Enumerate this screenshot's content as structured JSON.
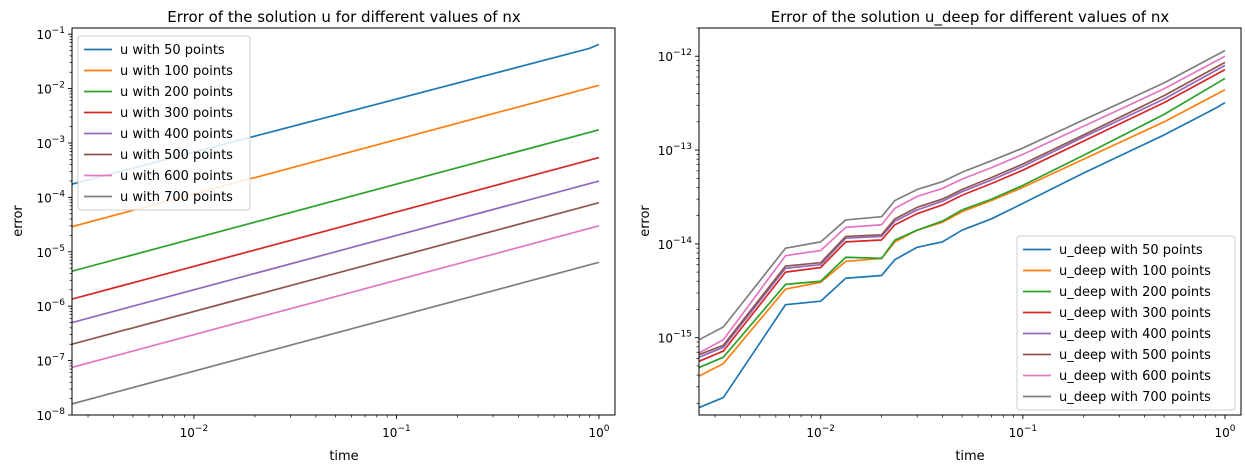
{
  "chart_data": [
    {
      "type": "line",
      "title": "Error of the solution u for different values of nx",
      "xlabel": "time",
      "ylabel": "error",
      "xscale": "log",
      "yscale": "log",
      "xlim": [
        0.0025,
        1.2
      ],
      "ylim": [
        1e-08,
        0.13
      ],
      "x_ticks": [
        {
          "value": 0.01,
          "base": "10",
          "exp": "−2"
        },
        {
          "value": 0.1,
          "base": "10",
          "exp": "−1"
        },
        {
          "value": 1,
          "base": "10",
          "exp": "0"
        }
      ],
      "y_ticks": [
        {
          "value": 1e-08,
          "base": "10",
          "exp": "−8"
        },
        {
          "value": 1e-07,
          "base": "10",
          "exp": "−7"
        },
        {
          "value": 1e-06,
          "base": "10",
          "exp": "−6"
        },
        {
          "value": 1e-05,
          "base": "10",
          "exp": "−5"
        },
        {
          "value": 0.0001,
          "base": "10",
          "exp": "−4"
        },
        {
          "value": 0.001,
          "base": "10",
          "exp": "−3"
        },
        {
          "value": 0.01,
          "base": "10",
          "exp": "−2"
        },
        {
          "value": 0.1,
          "base": "10",
          "exp": "−1"
        }
      ],
      "legend_position": "top-left",
      "series": [
        {
          "name": "u with 50 points",
          "color": "#1f77b4",
          "points": [
            [
              0.0025,
              0.000175
            ],
            [
              0.9,
              0.055
            ],
            [
              1.0,
              0.065
            ]
          ]
        },
        {
          "name": "u with 100 points",
          "color": "#ff7f0e",
          "points": [
            [
              0.0025,
              2.9e-05
            ],
            [
              1.0,
              0.0115
            ]
          ]
        },
        {
          "name": "u with 200 points",
          "color": "#2ca02c",
          "points": [
            [
              0.0025,
              4.4e-06
            ],
            [
              1.0,
              0.00175
            ]
          ]
        },
        {
          "name": "u with 300 points",
          "color": "#d62728",
          "points": [
            [
              0.0025,
              1.35e-06
            ],
            [
              1.0,
              0.00054
            ]
          ]
        },
        {
          "name": "u with 400 points",
          "color": "#9467bd",
          "points": [
            [
              0.0025,
              5e-07
            ],
            [
              1.0,
              0.0002
            ]
          ]
        },
        {
          "name": "u with 500 points",
          "color": "#8c564b",
          "points": [
            [
              0.0025,
              2e-07
            ],
            [
              1.0,
              8e-05
            ]
          ]
        },
        {
          "name": "u with 600 points",
          "color": "#e377c2",
          "points": [
            [
              0.0025,
              7.5e-08
            ],
            [
              1.0,
              3e-05
            ]
          ]
        },
        {
          "name": "u with 700 points",
          "color": "#7f7f7f",
          "points": [
            [
              0.0025,
              1.6e-08
            ],
            [
              1.0,
              6.4e-06
            ]
          ]
        }
      ]
    },
    {
      "type": "line",
      "title": "Error of the solution u_deep for different values of nx",
      "xlabel": "time",
      "ylabel": "error",
      "xscale": "log",
      "yscale": "log",
      "xlim": [
        0.0025,
        1.2
      ],
      "ylim": [
        1.5e-16,
        2e-12
      ],
      "x_ticks": [
        {
          "value": 0.01,
          "base": "10",
          "exp": "−2"
        },
        {
          "value": 0.1,
          "base": "10",
          "exp": "−1"
        },
        {
          "value": 1,
          "base": "10",
          "exp": "0"
        }
      ],
      "y_ticks": [
        {
          "value": 1e-15,
          "base": "10",
          "exp": "−15"
        },
        {
          "value": 1e-14,
          "base": "10",
          "exp": "−14"
        },
        {
          "value": 1e-13,
          "base": "10",
          "exp": "−13"
        },
        {
          "value": 1e-12,
          "base": "10",
          "exp": "−12"
        }
      ],
      "legend_position": "lower-right",
      "series": [
        {
          "name": "u_deep with 50 points",
          "color": "#1f77b4",
          "points": [
            [
              0.0025,
              1.8e-16
            ],
            [
              0.0033,
              2.3e-16
            ],
            [
              0.0067,
              2.25e-15
            ],
            [
              0.01,
              2.45e-15
            ],
            [
              0.0133,
              4.3e-15
            ],
            [
              0.02,
              4.6e-15
            ],
            [
              0.0233,
              6.8e-15
            ],
            [
              0.03,
              9.2e-15
            ],
            [
              0.04,
              1.05e-14
            ],
            [
              0.05,
              1.4e-14
            ],
            [
              0.07,
              1.85e-14
            ],
            [
              0.1,
              2.7e-14
            ],
            [
              0.2,
              5.7e-14
            ],
            [
              0.5,
              1.45e-13
            ],
            [
              0.9,
              2.8e-13
            ],
            [
              1.0,
              3.2e-13
            ]
          ]
        },
        {
          "name": "u_deep with 100 points",
          "color": "#ff7f0e",
          "points": [
            [
              0.0025,
              3.9e-16
            ],
            [
              0.0033,
              5.3e-16
            ],
            [
              0.0067,
              3.3e-15
            ],
            [
              0.01,
              3.9e-15
            ],
            [
              0.0133,
              6.5e-15
            ],
            [
              0.02,
              7e-15
            ],
            [
              0.0233,
              1.05e-14
            ],
            [
              0.03,
              1.4e-14
            ],
            [
              0.04,
              1.7e-14
            ],
            [
              0.05,
              2.2e-14
            ],
            [
              0.07,
              2.9e-14
            ],
            [
              0.1,
              4e-14
            ],
            [
              0.2,
              8e-14
            ],
            [
              0.5,
              2e-13
            ],
            [
              1.0,
              4.4e-13
            ]
          ]
        },
        {
          "name": "u_deep with 200 points",
          "color": "#2ca02c",
          "points": [
            [
              0.0025,
              4.8e-16
            ],
            [
              0.0033,
              6.2e-16
            ],
            [
              0.0067,
              3.7e-15
            ],
            [
              0.01,
              4e-15
            ],
            [
              0.0133,
              7.2e-15
            ],
            [
              0.02,
              7e-15
            ],
            [
              0.0233,
              1.1e-14
            ],
            [
              0.03,
              1.4e-14
            ],
            [
              0.04,
              1.75e-14
            ],
            [
              0.05,
              2.3e-14
            ],
            [
              0.07,
              3e-14
            ],
            [
              0.1,
              4.2e-14
            ],
            [
              0.2,
              8.8e-14
            ],
            [
              0.5,
              2.4e-13
            ],
            [
              1.0,
              5.8e-13
            ]
          ]
        },
        {
          "name": "u_deep with 300 points",
          "color": "#d62728",
          "points": [
            [
              0.0025,
              5.6e-16
            ],
            [
              0.0033,
              7.2e-16
            ],
            [
              0.0067,
              5e-15
            ],
            [
              0.01,
              5.6e-15
            ],
            [
              0.0133,
              1.05e-14
            ],
            [
              0.02,
              1.1e-14
            ],
            [
              0.0233,
              1.6e-14
            ],
            [
              0.03,
              2.1e-14
            ],
            [
              0.04,
              2.6e-14
            ],
            [
              0.05,
              3.3e-14
            ],
            [
              0.07,
              4.4e-14
            ],
            [
              0.1,
              6.1e-14
            ],
            [
              0.2,
              1.25e-13
            ],
            [
              0.5,
              3.2e-13
            ],
            [
              1.0,
              7.2e-13
            ]
          ]
        },
        {
          "name": "u_deep with 400 points",
          "color": "#9467bd",
          "points": [
            [
              0.0025,
              6.2e-16
            ],
            [
              0.0033,
              7.9e-16
            ],
            [
              0.0067,
              5.5e-15
            ],
            [
              0.01,
              6e-15
            ],
            [
              0.0133,
              1.15e-14
            ],
            [
              0.02,
              1.2e-14
            ],
            [
              0.0233,
              1.75e-14
            ],
            [
              0.03,
              2.3e-14
            ],
            [
              0.04,
              2.85e-14
            ],
            [
              0.05,
              3.6e-14
            ],
            [
              0.07,
              4.8e-14
            ],
            [
              0.1,
              6.7e-14
            ],
            [
              0.2,
              1.38e-13
            ],
            [
              0.5,
              3.5e-13
            ],
            [
              1.0,
              8e-13
            ]
          ]
        },
        {
          "name": "u_deep with 500 points",
          "color": "#8c564b",
          "points": [
            [
              0.0025,
              6.6e-16
            ],
            [
              0.0033,
              8.3e-16
            ],
            [
              0.0067,
              5.8e-15
            ],
            [
              0.01,
              6.3e-15
            ],
            [
              0.0133,
              1.2e-14
            ],
            [
              0.02,
              1.25e-14
            ],
            [
              0.0233,
              1.85e-14
            ],
            [
              0.03,
              2.45e-14
            ],
            [
              0.04,
              3e-14
            ],
            [
              0.05,
              3.8e-14
            ],
            [
              0.07,
              5.1e-14
            ],
            [
              0.1,
              7.1e-14
            ],
            [
              0.2,
              1.45e-13
            ],
            [
              0.5,
              3.8e-13
            ],
            [
              1.0,
              8.6e-13
            ]
          ]
        },
        {
          "name": "u_deep with 600 points",
          "color": "#e377c2",
          "points": [
            [
              0.0025,
              6.9e-16
            ],
            [
              0.0033,
              9.5e-16
            ],
            [
              0.0067,
              7.5e-15
            ],
            [
              0.01,
              8.5e-15
            ],
            [
              0.0133,
              1.5e-14
            ],
            [
              0.02,
              1.6e-14
            ],
            [
              0.0233,
              2.4e-14
            ],
            [
              0.03,
              3.2e-14
            ],
            [
              0.04,
              3.9e-14
            ],
            [
              0.05,
              4.9e-14
            ],
            [
              0.07,
              6.5e-14
            ],
            [
              0.1,
              9e-14
            ],
            [
              0.2,
              1.8e-13
            ],
            [
              0.5,
              4.5e-13
            ],
            [
              1.0,
              1e-12
            ]
          ]
        },
        {
          "name": "u_deep with 700 points",
          "color": "#7f7f7f",
          "points": [
            [
              0.0025,
              9.5e-16
            ],
            [
              0.0033,
              1.3e-15
            ],
            [
              0.0067,
              9e-15
            ],
            [
              0.01,
              1.05e-14
            ],
            [
              0.0133,
              1.8e-14
            ],
            [
              0.02,
              1.95e-14
            ],
            [
              0.0233,
              2.9e-14
            ],
            [
              0.03,
              3.8e-14
            ],
            [
              0.04,
              4.6e-14
            ],
            [
              0.05,
              5.8e-14
            ],
            [
              0.07,
              7.7e-14
            ],
            [
              0.1,
              1.05e-13
            ],
            [
              0.2,
              2.1e-13
            ],
            [
              0.5,
              5.2e-13
            ],
            [
              1.0,
              1.15e-12
            ]
          ]
        }
      ]
    }
  ]
}
